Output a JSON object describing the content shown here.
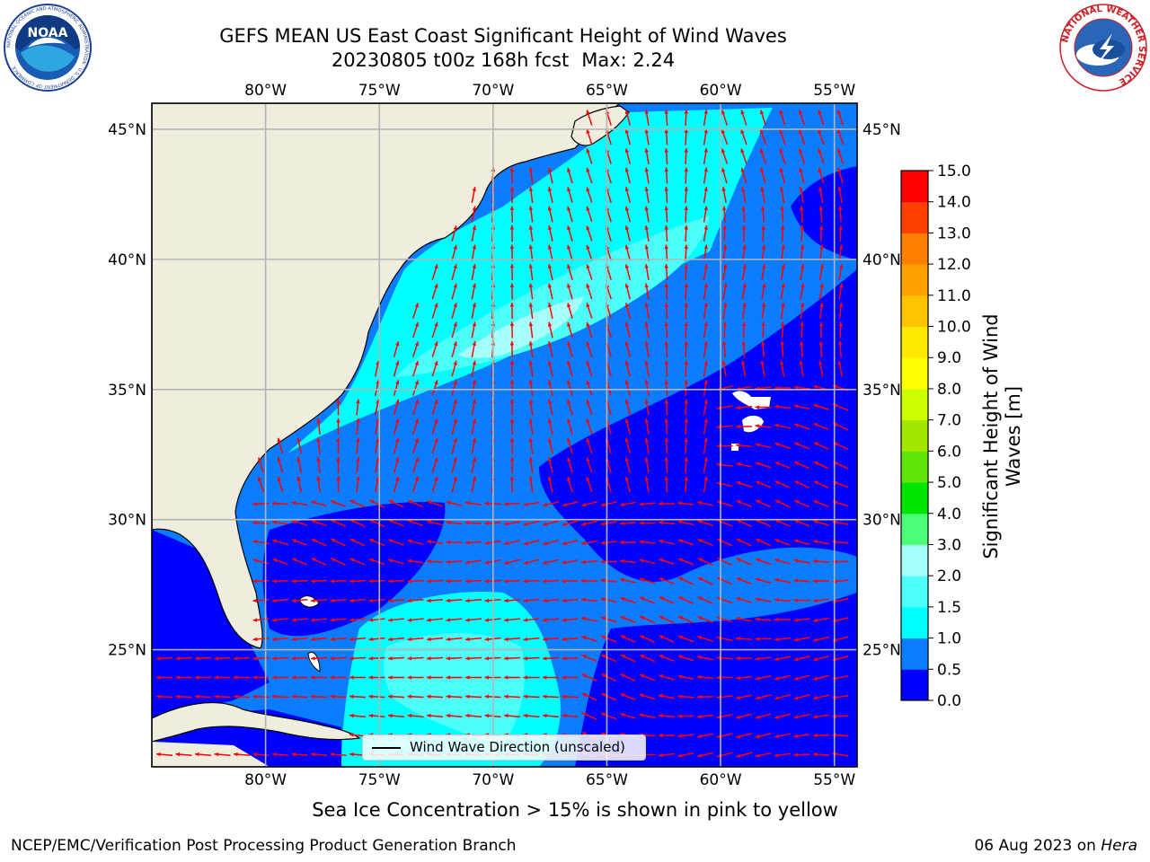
{
  "header": {
    "title_line1": "GEFS MEAN US East Coast Significant Height of Wind Waves",
    "run_label": "20230805 t00z 168h fcst",
    "max_label": "Max: 2.24"
  },
  "logos": {
    "left": {
      "icon": "noaa-logo",
      "text": "NOAA",
      "ring_text": "NATIONAL OCEANIC AND ATMOSPHERIC ADMINISTRATION · U.S. DEPARTMENT OF COMMERCE"
    },
    "right": {
      "icon": "nws-logo",
      "ring_text": "NATIONAL WEATHER SERVICE"
    }
  },
  "map": {
    "projection": "Plate Carree",
    "lon_range": [
      -85,
      -54
    ],
    "lat_range": [
      20.5,
      46
    ],
    "lon_ticks": [
      -80,
      -75,
      -70,
      -65,
      -60,
      -55
    ],
    "lat_ticks": [
      25,
      30,
      35,
      40,
      45
    ],
    "lon_tick_labels": [
      "80°W",
      "75°W",
      "70°W",
      "65°W",
      "60°W",
      "55°W"
    ],
    "lat_tick_labels": [
      "25°N",
      "30°N",
      "35°N",
      "40°N",
      "45°N"
    ],
    "grid": true,
    "land_color": "#efedde",
    "arrow_color": "#ff0000",
    "legend": {
      "label": "Wind Wave Direction (unscaled)",
      "placement": "bottom-center"
    }
  },
  "colorbar": {
    "title": "Significant Height of Wind Waves [m]",
    "levels": [
      0.0,
      0.5,
      1.0,
      1.5,
      2.0,
      3.0,
      4.0,
      5.0,
      6.0,
      7.0,
      8.0,
      9.0,
      10.0,
      11.0,
      12.0,
      13.0,
      14.0,
      15.0
    ],
    "level_labels": [
      "0.0",
      "0.5",
      "1.0",
      "1.5",
      "2.0",
      "3.0",
      "4.0",
      "5.0",
      "6.0",
      "7.0",
      "8.0",
      "9.0",
      "10.0",
      "11.0",
      "12.0",
      "13.0",
      "14.0",
      "15.0"
    ],
    "colors": [
      "#0000ff",
      "#0a7cff",
      "#00ffff",
      "#4cfffb",
      "#a6fffa",
      "#4cff79",
      "#00e600",
      "#5fe60a",
      "#a3e600",
      "#ccff00",
      "#ffff00",
      "#ffea00",
      "#ffc400",
      "#ffa200",
      "#ff7f00",
      "#ff4000",
      "#ff0000"
    ]
  },
  "footer": {
    "caption": "Sea Ice Concentration > 15% is shown in pink to yellow",
    "credit_left": "NCEP/EMC/Verification Post Processing Product Generation Branch",
    "date": "06 Aug 2023 on",
    "host": "Hera"
  }
}
